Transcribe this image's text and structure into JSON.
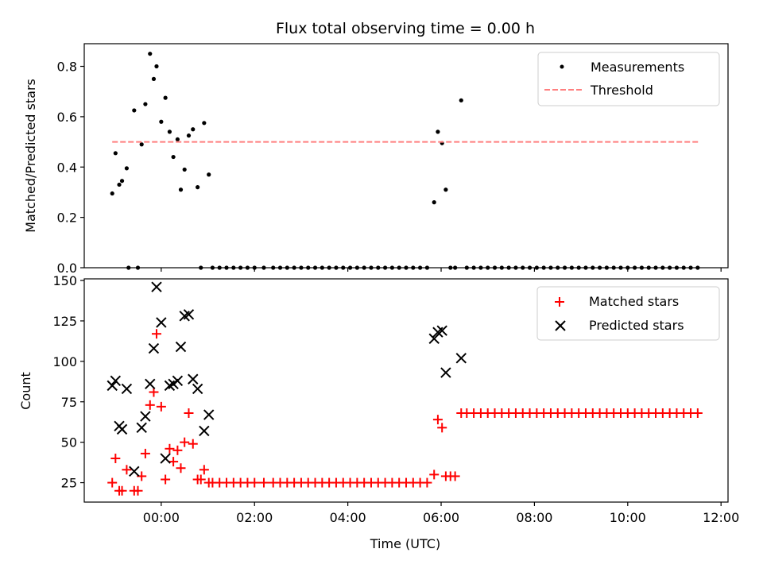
{
  "chart_data": [
    {
      "type": "scatter",
      "title": "Flux total observing time = 0.00 h",
      "xlabel": "",
      "ylabel": "Matched/Predicted stars",
      "xlim": [
        -1.65,
        12.15
      ],
      "ylim": [
        0,
        0.89
      ],
      "yticks": [
        0,
        0.2,
        0.4,
        0.6,
        0.8
      ],
      "ytick_labels": [
        "0.0",
        "0.2",
        "0.4",
        "0.6",
        "0.8"
      ],
      "xticks": [
        0,
        2,
        4,
        6,
        8,
        10,
        12
      ],
      "grid": false,
      "legend": {
        "placement": "top-right",
        "entries": [
          "Measurements",
          "Threshold"
        ]
      },
      "series": [
        {
          "name": "Measurements",
          "marker": "dot",
          "color": "#000000",
          "points": [
            [
              -1.05,
              0.295
            ],
            [
              -0.98,
              0.455
            ],
            [
              -0.9,
              0.33
            ],
            [
              -0.84,
              0.345
            ],
            [
              -0.74,
              0.395
            ],
            [
              -0.58,
              0.625
            ],
            [
              -0.42,
              0.49
            ],
            [
              -0.34,
              0.65
            ],
            [
              -0.24,
              0.85
            ],
            [
              -0.16,
              0.75
            ],
            [
              -0.1,
              0.8
            ],
            [
              0.0,
              0.58
            ],
            [
              0.09,
              0.675
            ],
            [
              0.18,
              0.54
            ],
            [
              0.26,
              0.44
            ],
            [
              0.35,
              0.51
            ],
            [
              0.42,
              0.31
            ],
            [
              0.5,
              0.39
            ],
            [
              0.59,
              0.525
            ],
            [
              0.68,
              0.55
            ],
            [
              0.78,
              0.32
            ],
            [
              0.92,
              0.575
            ],
            [
              1.02,
              0.37
            ],
            [
              5.85,
              0.26
            ],
            [
              5.93,
              0.54
            ],
            [
              6.02,
              0.495
            ],
            [
              6.1,
              0.31
            ],
            [
              6.43,
              0.665
            ],
            [
              -0.7,
              0
            ],
            [
              -0.5,
              0
            ],
            [
              0.85,
              0
            ],
            [
              1.1,
              0
            ],
            [
              1.25,
              0
            ],
            [
              1.4,
              0
            ],
            [
              1.55,
              0
            ],
            [
              1.7,
              0
            ],
            [
              1.85,
              0
            ],
            [
              2.0,
              0
            ],
            [
              2.2,
              0
            ],
            [
              2.4,
              0
            ],
            [
              2.55,
              0
            ],
            [
              2.7,
              0
            ],
            [
              2.85,
              0
            ],
            [
              3.0,
              0
            ],
            [
              3.15,
              0
            ],
            [
              3.3,
              0
            ],
            [
              3.45,
              0
            ],
            [
              3.6,
              0
            ],
            [
              3.75,
              0
            ],
            [
              3.9,
              0
            ],
            [
              4.05,
              0
            ],
            [
              4.2,
              0
            ],
            [
              4.35,
              0
            ],
            [
              4.5,
              0
            ],
            [
              4.65,
              0
            ],
            [
              4.8,
              0
            ],
            [
              4.95,
              0
            ],
            [
              5.1,
              0
            ],
            [
              5.25,
              0
            ],
            [
              5.4,
              0
            ],
            [
              5.55,
              0
            ],
            [
              5.7,
              0
            ],
            [
              6.2,
              0
            ],
            [
              6.3,
              0
            ],
            [
              6.55,
              0
            ],
            [
              6.7,
              0
            ],
            [
              6.85,
              0
            ],
            [
              7.0,
              0
            ],
            [
              7.15,
              0
            ],
            [
              7.3,
              0
            ],
            [
              7.45,
              0
            ],
            [
              7.6,
              0
            ],
            [
              7.75,
              0
            ],
            [
              7.9,
              0
            ],
            [
              8.05,
              0
            ],
            [
              8.2,
              0
            ],
            [
              8.35,
              0
            ],
            [
              8.5,
              0
            ],
            [
              8.65,
              0
            ],
            [
              8.8,
              0
            ],
            [
              8.95,
              0
            ],
            [
              9.1,
              0
            ],
            [
              9.25,
              0
            ],
            [
              9.4,
              0
            ],
            [
              9.55,
              0
            ],
            [
              9.7,
              0
            ],
            [
              9.85,
              0
            ],
            [
              10.0,
              0
            ],
            [
              10.15,
              0
            ],
            [
              10.3,
              0
            ],
            [
              10.45,
              0
            ],
            [
              10.6,
              0
            ],
            [
              10.75,
              0
            ],
            [
              10.9,
              0
            ],
            [
              11.05,
              0
            ],
            [
              11.2,
              0
            ],
            [
              11.35,
              0
            ],
            [
              11.5,
              0
            ]
          ]
        },
        {
          "name": "Threshold",
          "style": "dashed",
          "color": "#ff7f7f",
          "points": [
            [
              -1.05,
              0.5
            ],
            [
              11.55,
              0.5
            ]
          ]
        }
      ]
    },
    {
      "type": "scatter",
      "title": "",
      "xlabel": "Time (UTC)",
      "ylabel": "Count",
      "xlim": [
        -1.65,
        12.15
      ],
      "ylim": [
        13,
        151
      ],
      "yticks": [
        25,
        50,
        75,
        100,
        125,
        150
      ],
      "ytick_labels": [
        "25",
        "50",
        "75",
        "100",
        "125",
        "150"
      ],
      "xticks": [
        0,
        2,
        4,
        6,
        8,
        10,
        12
      ],
      "xtick_labels": [
        "00:00",
        "02:00",
        "04:00",
        "06:00",
        "08:00",
        "10:00",
        "12:00"
      ],
      "grid": false,
      "legend": {
        "placement": "top-right",
        "entries": [
          "Matched stars",
          "Predicted stars"
        ]
      },
      "series": [
        {
          "name": "Matched stars",
          "marker": "plus",
          "color": "#ff0000",
          "points": [
            [
              -1.05,
              25
            ],
            [
              -0.98,
              40
            ],
            [
              -0.9,
              20
            ],
            [
              -0.84,
              20
            ],
            [
              -0.74,
              33
            ],
            [
              -0.58,
              20
            ],
            [
              -0.5,
              20
            ],
            [
              -0.42,
              29
            ],
            [
              -0.34,
              43
            ],
            [
              -0.24,
              73
            ],
            [
              -0.16,
              81
            ],
            [
              -0.1,
              117
            ],
            [
              0.0,
              72
            ],
            [
              0.09,
              27
            ],
            [
              0.18,
              46
            ],
            [
              0.26,
              38
            ],
            [
              0.35,
              45
            ],
            [
              0.42,
              34
            ],
            [
              0.5,
              50
            ],
            [
              0.59,
              68
            ],
            [
              0.68,
              49
            ],
            [
              0.78,
              27
            ],
            [
              0.85,
              27
            ],
            [
              0.92,
              33
            ],
            [
              1.02,
              25
            ],
            [
              1.1,
              25
            ],
            [
              1.25,
              25
            ],
            [
              1.4,
              25
            ],
            [
              1.55,
              25
            ],
            [
              1.7,
              25
            ],
            [
              1.85,
              25
            ],
            [
              2.0,
              25
            ],
            [
              2.2,
              25
            ],
            [
              2.4,
              25
            ],
            [
              2.55,
              25
            ],
            [
              2.7,
              25
            ],
            [
              2.85,
              25
            ],
            [
              3.0,
              25
            ],
            [
              3.15,
              25
            ],
            [
              3.3,
              25
            ],
            [
              3.45,
              25
            ],
            [
              3.6,
              25
            ],
            [
              3.75,
              25
            ],
            [
              3.9,
              25
            ],
            [
              4.05,
              25
            ],
            [
              4.2,
              25
            ],
            [
              4.35,
              25
            ],
            [
              4.5,
              25
            ],
            [
              4.65,
              25
            ],
            [
              4.8,
              25
            ],
            [
              4.95,
              25
            ],
            [
              5.1,
              25
            ],
            [
              5.25,
              25
            ],
            [
              5.4,
              25
            ],
            [
              5.55,
              25
            ],
            [
              5.7,
              25
            ],
            [
              5.85,
              30
            ],
            [
              5.93,
              64
            ],
            [
              6.02,
              59
            ],
            [
              6.1,
              29
            ],
            [
              6.2,
              29
            ],
            [
              6.3,
              29
            ],
            [
              6.43,
              68
            ],
            [
              6.55,
              68
            ],
            [
              6.7,
              68
            ],
            [
              6.85,
              68
            ],
            [
              7.0,
              68
            ],
            [
              7.15,
              68
            ],
            [
              7.3,
              68
            ],
            [
              7.45,
              68
            ],
            [
              7.6,
              68
            ],
            [
              7.75,
              68
            ],
            [
              7.9,
              68
            ],
            [
              8.05,
              68
            ],
            [
              8.2,
              68
            ],
            [
              8.35,
              68
            ],
            [
              8.5,
              68
            ],
            [
              8.65,
              68
            ],
            [
              8.8,
              68
            ],
            [
              8.95,
              68
            ],
            [
              9.1,
              68
            ],
            [
              9.25,
              68
            ],
            [
              9.4,
              68
            ],
            [
              9.55,
              68
            ],
            [
              9.7,
              68
            ],
            [
              9.85,
              68
            ],
            [
              10.0,
              68
            ],
            [
              10.15,
              68
            ],
            [
              10.3,
              68
            ],
            [
              10.45,
              68
            ],
            [
              10.6,
              68
            ],
            [
              10.75,
              68
            ],
            [
              10.9,
              68
            ],
            [
              11.05,
              68
            ],
            [
              11.2,
              68
            ],
            [
              11.35,
              68
            ],
            [
              11.5,
              68
            ]
          ]
        },
        {
          "name": "Predicted stars",
          "marker": "x",
          "color": "#000000",
          "points": [
            [
              -1.05,
              85
            ],
            [
              -0.98,
              88
            ],
            [
              -0.9,
              60
            ],
            [
              -0.84,
              58
            ],
            [
              -0.74,
              83
            ],
            [
              -0.58,
              32
            ],
            [
              -0.42,
              59
            ],
            [
              -0.34,
              66
            ],
            [
              -0.24,
              86
            ],
            [
              -0.16,
              108
            ],
            [
              -0.1,
              146
            ],
            [
              0.0,
              124
            ],
            [
              0.09,
              40
            ],
            [
              0.18,
              85
            ],
            [
              0.26,
              86
            ],
            [
              0.35,
              88
            ],
            [
              0.42,
              109
            ],
            [
              0.5,
              128
            ],
            [
              0.59,
              129
            ],
            [
              0.68,
              89
            ],
            [
              0.78,
              83
            ],
            [
              0.92,
              57
            ],
            [
              1.02,
              67
            ],
            [
              5.85,
              114
            ],
            [
              5.93,
              118
            ],
            [
              6.02,
              119
            ],
            [
              6.1,
              93
            ],
            [
              6.43,
              102
            ]
          ]
        }
      ]
    }
  ]
}
